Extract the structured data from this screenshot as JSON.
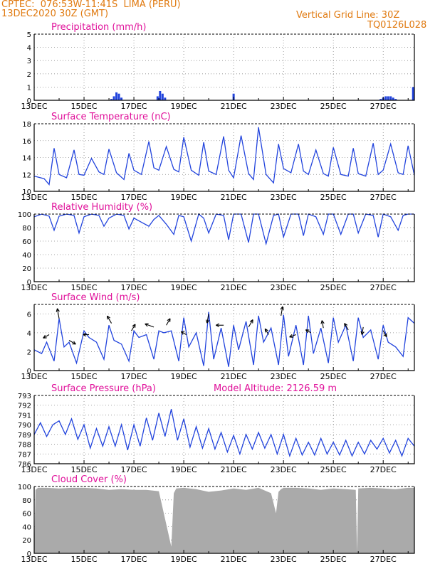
{
  "header": {
    "line1": "CPTEC:  076:53W-11:41S  LIMA (PERU)",
    "line2": "13DEC2020 30Z (GMT)",
    "right1": "Vertical Grid Line: 30Z",
    "right2": "TQ0126L028"
  },
  "x_labels": [
    "13DEC",
    "15DEC",
    "17DEC",
    "19DEC",
    "21DEC",
    "23DEC",
    "25DEC",
    "27DEC"
  ],
  "colors": {
    "line": "#2244dd",
    "title": "#e0109a",
    "header": "#e07a10",
    "cloud": "#aaaaaa"
  },
  "chart_data": [
    {
      "type": "bar",
      "title": "Precipitation (mm/h)",
      "ylim": [
        0,
        5
      ],
      "yticks": [
        0,
        1,
        2,
        3,
        4,
        5
      ],
      "x_range_days": [
        0,
        15.25
      ],
      "x": [
        3.1,
        3.2,
        3.3,
        3.4,
        3.5,
        4.95,
        5.05,
        5.15,
        5.25,
        8.0,
        13.9,
        14.0,
        14.1,
        14.2,
        14.3,
        14.4,
        14.5,
        15.2
      ],
      "values": [
        0.1,
        0.3,
        0.6,
        0.5,
        0.2,
        0.3,
        0.7,
        0.5,
        0.2,
        0.5,
        0.1,
        0.2,
        0.3,
        0.3,
        0.3,
        0.2,
        0.1,
        1.0
      ]
    },
    {
      "type": "line",
      "title": "Surface Temperature (nC)",
      "ylim": [
        10,
        18
      ],
      "yticks": [
        10,
        12,
        14,
        16,
        18
      ],
      "x_range_days": [
        0,
        15.25
      ],
      "x": [
        0,
        0.4,
        0.6,
        0.8,
        1.0,
        1.3,
        1.6,
        1.8,
        2.0,
        2.3,
        2.6,
        2.8,
        3.0,
        3.3,
        3.6,
        3.8,
        4.0,
        4.3,
        4.6,
        4.8,
        5.0,
        5.3,
        5.6,
        5.8,
        6.0,
        6.3,
        6.6,
        6.8,
        7.0,
        7.3,
        7.6,
        7.8,
        8.0,
        8.3,
        8.6,
        8.8,
        9.0,
        9.3,
        9.6,
        9.8,
        10.0,
        10.3,
        10.6,
        10.8,
        11.0,
        11.3,
        11.6,
        11.8,
        12.0,
        12.3,
        12.6,
        12.8,
        13.0,
        13.3,
        13.6,
        13.8,
        14.0,
        14.3,
        14.6,
        14.8,
        15.0,
        15.25
      ],
      "values": [
        11.8,
        11.5,
        10.8,
        15.1,
        12.0,
        11.6,
        14.9,
        12.0,
        11.9,
        13.9,
        12.3,
        12.0,
        15.0,
        12.2,
        11.4,
        14.5,
        12.5,
        12.0,
        15.9,
        12.8,
        12.5,
        15.3,
        12.6,
        12.3,
        16.4,
        12.5,
        11.9,
        15.8,
        12.4,
        12.0,
        16.5,
        12.5,
        11.6,
        16.6,
        12.1,
        11.4,
        17.6,
        12.0,
        11.0,
        15.6,
        12.7,
        12.2,
        15.6,
        12.4,
        12.0,
        14.9,
        12.1,
        11.8,
        15.2,
        12.0,
        11.8,
        15.1,
        12.1,
        11.8,
        15.7,
        12.0,
        12.5,
        15.6,
        12.2,
        12.0,
        15.4,
        11.9
      ]
    },
    {
      "type": "line",
      "title": "Relative Humidity (%)",
      "ylim": [
        0,
        100
      ],
      "yticks": [
        0,
        20,
        40,
        60,
        80,
        100
      ],
      "x_range_days": [
        0,
        15.25
      ],
      "x": [
        0,
        0.3,
        0.6,
        0.8,
        1.0,
        1.3,
        1.6,
        1.8,
        2.0,
        2.3,
        2.6,
        2.8,
        3.0,
        3.3,
        3.6,
        3.8,
        4.0,
        4.3,
        4.6,
        4.8,
        5.0,
        5.3,
        5.6,
        5.8,
        6.0,
        6.3,
        6.6,
        6.8,
        7.0,
        7.3,
        7.6,
        7.8,
        8.0,
        8.3,
        8.6,
        8.8,
        9.0,
        9.3,
        9.6,
        9.8,
        10.0,
        10.3,
        10.6,
        10.8,
        11.0,
        11.3,
        11.6,
        11.8,
        12.0,
        12.3,
        12.6,
        12.8,
        13.0,
        13.3,
        13.6,
        13.8,
        14.0,
        14.3,
        14.6,
        14.8,
        15.0,
        15.25
      ],
      "values": [
        96,
        100,
        97,
        76,
        97,
        100,
        98,
        72,
        96,
        100,
        98,
        82,
        94,
        100,
        98,
        78,
        94,
        88,
        82,
        92,
        98,
        85,
        70,
        98,
        96,
        60,
        100,
        94,
        72,
        100,
        98,
        62,
        100,
        100,
        58,
        100,
        100,
        56,
        98,
        100,
        66,
        100,
        100,
        68,
        100,
        96,
        70,
        100,
        100,
        70,
        100,
        100,
        72,
        100,
        98,
        66,
        100,
        96,
        76,
        98,
        100,
        100
      ]
    },
    {
      "type": "line",
      "title": "Surface Wind (m/s)",
      "ylim": [
        0,
        7
      ],
      "yticks": [
        0,
        2,
        4,
        6
      ],
      "x_range_days": [
        0,
        15.25
      ],
      "x": [
        0,
        0.3,
        0.5,
        0.8,
        1.0,
        1.2,
        1.4,
        1.7,
        2.0,
        2.2,
        2.5,
        2.8,
        3.0,
        3.2,
        3.5,
        3.8,
        4.0,
        4.2,
        4.5,
        4.8,
        5.0,
        5.2,
        5.5,
        5.8,
        6.0,
        6.2,
        6.5,
        6.8,
        7.0,
        7.2,
        7.5,
        7.8,
        8.0,
        8.2,
        8.5,
        8.8,
        9.0,
        9.2,
        9.5,
        9.8,
        10.0,
        10.2,
        10.5,
        10.8,
        11.0,
        11.2,
        11.5,
        11.8,
        12.0,
        12.2,
        12.5,
        12.8,
        13.0,
        13.2,
        13.5,
        13.8,
        14.0,
        14.2,
        14.5,
        14.8,
        15.0,
        15.25
      ],
      "values": [
        2.2,
        1.8,
        3.0,
        1.0,
        5.5,
        2.5,
        3.0,
        0.8,
        4.2,
        3.5,
        3.0,
        1.2,
        4.8,
        3.2,
        2.8,
        1.0,
        4.2,
        3.5,
        3.8,
        1.2,
        4.2,
        4.0,
        4.2,
        1.0,
        5.6,
        2.5,
        4.0,
        0.5,
        6.2,
        1.2,
        4.5,
        0.4,
        4.8,
        2.2,
        5.2,
        0.6,
        5.8,
        3.0,
        4.5,
        0.6,
        5.9,
        1.5,
        4.8,
        0.6,
        5.8,
        1.8,
        4.5,
        0.8,
        5.6,
        3.0,
        4.8,
        1.0,
        5.6,
        3.5,
        4.3,
        1.2,
        4.8,
        3.0,
        2.5,
        1.5,
        5.6,
        5.0
      ],
      "arrows": {
        "x": [
          0.6,
          1.0,
          1.4,
          2.2,
          3.1,
          3.9,
          4.8,
          5.3,
          6.1,
          7.0,
          7.6,
          8.6,
          9.4,
          9.9,
          10.5,
          11.1,
          11.6,
          12.6,
          13.2,
          14.0
        ],
        "y": [
          3.8,
          5.5,
          3.2,
          3.8,
          5.0,
          4.2,
          4.6,
          4.8,
          3.8,
          6.0,
          4.8,
          4.6,
          3.8,
          5.8,
          3.8,
          4.0,
          4.5,
          4.3,
          4.6,
          4.2
        ],
        "dir_deg": [
          210,
          100,
          330,
          180,
          120,
          60,
          160,
          60,
          150,
          260,
          180,
          60,
          120,
          80,
          200,
          150,
          100,
          120,
          260,
          300
        ],
        "len": [
          0.8,
          1.2,
          0.9,
          0.7,
          1.0,
          0.9,
          1.1,
          0.9,
          0.7,
          1.1,
          0.9,
          1.0,
          0.8,
          1.1,
          0.8,
          0.7,
          0.9,
          0.9,
          0.9,
          0.8
        ]
      }
    },
    {
      "type": "line",
      "title": "Surface Pressure (hPa)",
      "annotation": "Model Altitude: 2126.59  m",
      "ylim": [
        786,
        793
      ],
      "yticks": [
        786,
        787,
        788,
        789,
        790,
        791,
        792,
        793
      ],
      "x_range_days": [
        0,
        15.25
      ],
      "x": [
        0,
        0.25,
        0.5,
        0.75,
        1.0,
        1.25,
        1.5,
        1.75,
        2.0,
        2.25,
        2.5,
        2.75,
        3.0,
        3.25,
        3.5,
        3.75,
        4.0,
        4.25,
        4.5,
        4.75,
        5.0,
        5.25,
        5.5,
        5.75,
        6.0,
        6.25,
        6.5,
        6.75,
        7.0,
        7.25,
        7.5,
        7.75,
        8.0,
        8.25,
        8.5,
        8.75,
        9.0,
        9.25,
        9.5,
        9.75,
        10.0,
        10.25,
        10.5,
        10.75,
        11.0,
        11.25,
        11.5,
        11.75,
        12.0,
        12.25,
        12.5,
        12.75,
        13.0,
        13.25,
        13.5,
        13.75,
        14.0,
        14.25,
        14.5,
        14.75,
        15.0,
        15.25
      ],
      "values": [
        789.0,
        790.2,
        788.8,
        790.0,
        790.4,
        789.0,
        790.6,
        788.5,
        790.0,
        787.6,
        789.6,
        787.8,
        789.8,
        787.8,
        790.0,
        787.4,
        790.0,
        787.8,
        790.7,
        788.4,
        791.2,
        788.8,
        791.6,
        788.4,
        790.6,
        787.7,
        789.8,
        787.6,
        789.6,
        787.5,
        789.2,
        787.2,
        788.9,
        787.0,
        789.0,
        787.5,
        789.2,
        787.6,
        789.0,
        787.0,
        789.0,
        786.8,
        788.6,
        786.9,
        788.2,
        786.9,
        788.6,
        787.0,
        788.2,
        786.9,
        788.4,
        786.8,
        788.2,
        787.0,
        788.4,
        787.5,
        788.6,
        787.1,
        788.4,
        786.8,
        788.6,
        787.8
      ]
    },
    {
      "type": "area",
      "title": "Cloud Cover (%)",
      "ylim": [
        0,
        100
      ],
      "yticks": [
        0,
        20,
        40,
        60,
        80,
        100
      ],
      "x_range_days": [
        0,
        15.25
      ],
      "x": [
        0,
        0.05,
        0.15,
        0.5,
        1.0,
        1.5,
        2.0,
        2.5,
        3.0,
        3.5,
        4.0,
        4.5,
        5.0,
        5.5,
        5.6,
        5.7,
        6.0,
        6.5,
        7.0,
        7.5,
        8.0,
        8.5,
        9.0,
        9.5,
        9.7,
        9.8,
        9.9,
        10.0,
        10.5,
        11.0,
        11.5,
        12.0,
        12.5,
        12.9,
        12.95,
        13.0,
        13.5,
        14.0,
        14.5,
        15.0,
        15.25
      ],
      "values": [
        2,
        95,
        98,
        98,
        97,
        98,
        98,
        97,
        95,
        96,
        95,
        95,
        93,
        10,
        90,
        97,
        98,
        96,
        92,
        94,
        97,
        95,
        98,
        90,
        60,
        92,
        96,
        98,
        98,
        97,
        95,
        97,
        96,
        95,
        2,
        97,
        98,
        97,
        96,
        98,
        98
      ]
    }
  ]
}
